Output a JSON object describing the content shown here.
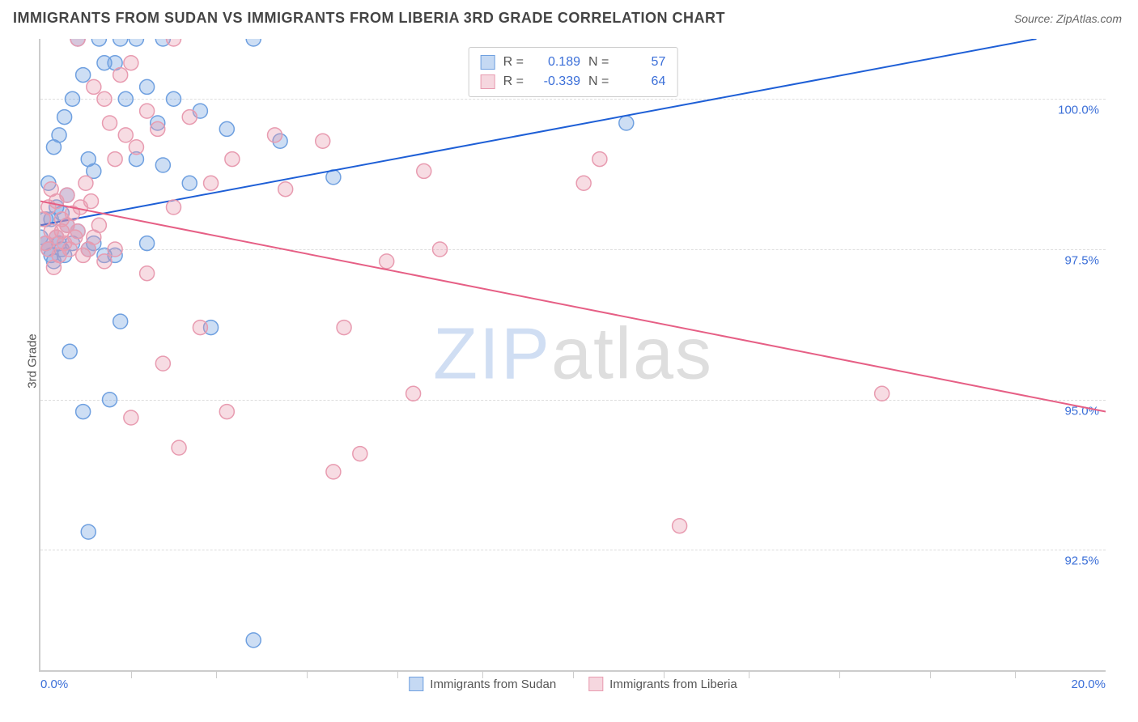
{
  "title": "IMMIGRANTS FROM SUDAN VS IMMIGRANTS FROM LIBERIA 3RD GRADE CORRELATION CHART",
  "source": "Source: ZipAtlas.com",
  "ylabel": "3rd Grade",
  "watermark_prefix": "ZIP",
  "watermark_suffix": "atlas",
  "chart": {
    "type": "scatter",
    "xlim": [
      0.0,
      20.0
    ],
    "ylim": [
      90.5,
      101.0
    ],
    "x_unit": "%",
    "y_unit": "%",
    "x_left_label": "0.0%",
    "x_right_label": "20.0%",
    "y_ticks": [
      92.5,
      95.0,
      97.5,
      100.0
    ],
    "y_tick_labels": [
      "92.5%",
      "95.0%",
      "97.5%",
      "100.0%"
    ],
    "x_tick_positions": [
      1.7,
      3.3,
      5.0,
      6.7,
      8.3,
      10.0,
      11.7,
      13.3,
      15.0,
      16.7,
      18.3
    ],
    "grid_color": "#dddddd",
    "axis_color": "#cccccc",
    "background_color": "#ffffff",
    "marker_radius": 9,
    "marker_fill_opacity": 0.35,
    "marker_stroke_width": 1.5,
    "line_width": 2,
    "series": [
      {
        "name": "Immigrants from Sudan",
        "color": "#6fa0e0",
        "line_color": "#1e5fd6",
        "r": 0.189,
        "n": 57,
        "trend": {
          "x1": 0,
          "y1": 97.9,
          "x2": 18.7,
          "y2": 101.0
        },
        "points": [
          [
            0.0,
            97.7
          ],
          [
            0.1,
            98.0
          ],
          [
            0.1,
            97.6
          ],
          [
            0.15,
            98.6
          ],
          [
            0.15,
            97.5
          ],
          [
            0.2,
            97.4
          ],
          [
            0.2,
            98.0
          ],
          [
            0.25,
            99.2
          ],
          [
            0.25,
            97.3
          ],
          [
            0.3,
            97.7
          ],
          [
            0.3,
            98.2
          ],
          [
            0.35,
            97.6
          ],
          [
            0.35,
            99.4
          ],
          [
            0.4,
            97.5
          ],
          [
            0.4,
            98.1
          ],
          [
            0.45,
            99.7
          ],
          [
            0.45,
            97.4
          ],
          [
            0.5,
            97.9
          ],
          [
            0.5,
            98.4
          ],
          [
            0.55,
            95.8
          ],
          [
            0.6,
            100.0
          ],
          [
            0.6,
            97.6
          ],
          [
            0.7,
            101.0
          ],
          [
            0.7,
            97.8
          ],
          [
            0.8,
            100.4
          ],
          [
            0.8,
            94.8
          ],
          [
            0.9,
            97.5
          ],
          [
            0.9,
            99.0
          ],
          [
            1.0,
            98.8
          ],
          [
            1.0,
            97.6
          ],
          [
            1.1,
            101.0
          ],
          [
            1.2,
            100.6
          ],
          [
            1.2,
            97.4
          ],
          [
            1.3,
            95.0
          ],
          [
            1.4,
            100.6
          ],
          [
            1.4,
            97.4
          ],
          [
            1.5,
            101.0
          ],
          [
            1.5,
            96.3
          ],
          [
            1.6,
            100.0
          ],
          [
            1.8,
            99.0
          ],
          [
            1.8,
            101.0
          ],
          [
            2.0,
            100.2
          ],
          [
            2.0,
            97.6
          ],
          [
            2.2,
            99.6
          ],
          [
            2.3,
            101.0
          ],
          [
            2.3,
            98.9
          ],
          [
            2.5,
            100.0
          ],
          [
            2.8,
            98.6
          ],
          [
            3.0,
            99.8
          ],
          [
            3.2,
            96.2
          ],
          [
            3.5,
            99.5
          ],
          [
            4.0,
            101.0
          ],
          [
            4.0,
            91.0
          ],
          [
            4.5,
            99.3
          ],
          [
            5.5,
            98.7
          ],
          [
            11.0,
            99.6
          ],
          [
            0.9,
            92.8
          ]
        ]
      },
      {
        "name": "Immigrants from Liberia",
        "color": "#e89bb0",
        "line_color": "#e65f85",
        "r": -0.339,
        "n": 64,
        "trend": {
          "x1": 0,
          "y1": 98.3,
          "x2": 20,
          "y2": 94.8
        },
        "points": [
          [
            0.05,
            98.0
          ],
          [
            0.1,
            97.6
          ],
          [
            0.15,
            98.2
          ],
          [
            0.15,
            97.5
          ],
          [
            0.2,
            97.8
          ],
          [
            0.2,
            98.5
          ],
          [
            0.25,
            97.2
          ],
          [
            0.3,
            97.7
          ],
          [
            0.3,
            98.3
          ],
          [
            0.35,
            97.4
          ],
          [
            0.4,
            97.8
          ],
          [
            0.4,
            98.0
          ],
          [
            0.45,
            97.6
          ],
          [
            0.5,
            97.9
          ],
          [
            0.5,
            98.4
          ],
          [
            0.55,
            97.5
          ],
          [
            0.6,
            98.1
          ],
          [
            0.65,
            97.7
          ],
          [
            0.7,
            101.0
          ],
          [
            0.7,
            97.8
          ],
          [
            0.75,
            98.2
          ],
          [
            0.8,
            97.4
          ],
          [
            0.85,
            98.6
          ],
          [
            0.9,
            97.5
          ],
          [
            0.95,
            98.3
          ],
          [
            1.0,
            97.7
          ],
          [
            1.0,
            100.2
          ],
          [
            1.1,
            97.9
          ],
          [
            1.2,
            100.0
          ],
          [
            1.2,
            97.3
          ],
          [
            1.3,
            99.6
          ],
          [
            1.4,
            99.0
          ],
          [
            1.4,
            97.5
          ],
          [
            1.5,
            100.4
          ],
          [
            1.6,
            99.4
          ],
          [
            1.7,
            94.7
          ],
          [
            1.7,
            100.6
          ],
          [
            1.8,
            99.2
          ],
          [
            2.0,
            99.8
          ],
          [
            2.0,
            97.1
          ],
          [
            2.2,
            99.5
          ],
          [
            2.3,
            95.6
          ],
          [
            2.5,
            98.2
          ],
          [
            2.6,
            94.2
          ],
          [
            2.8,
            99.7
          ],
          [
            3.0,
            96.2
          ],
          [
            3.2,
            98.6
          ],
          [
            3.5,
            94.8
          ],
          [
            3.6,
            99.0
          ],
          [
            4.4,
            99.4
          ],
          [
            4.6,
            98.5
          ],
          [
            5.3,
            99.3
          ],
          [
            5.5,
            93.8
          ],
          [
            5.7,
            96.2
          ],
          [
            6.0,
            94.1
          ],
          [
            6.5,
            97.3
          ],
          [
            7.0,
            95.1
          ],
          [
            7.2,
            98.8
          ],
          [
            7.5,
            97.5
          ],
          [
            10.2,
            98.6
          ],
          [
            10.5,
            99.0
          ],
          [
            12.0,
            92.9
          ],
          [
            15.8,
            95.1
          ],
          [
            2.5,
            101.0
          ]
        ]
      }
    ],
    "legend_bottom": [
      {
        "label": "Immigrants from Sudan",
        "swatch_fill": "rgba(111,160,224,0.4)",
        "swatch_border": "#6fa0e0"
      },
      {
        "label": "Immigrants from Liberia",
        "swatch_fill": "rgba(232,155,176,0.4)",
        "swatch_border": "#e89bb0"
      }
    ],
    "title_fontsize": 18,
    "label_fontsize": 15,
    "tick_fontsize": 15,
    "tick_color": "#3b6fd8"
  }
}
